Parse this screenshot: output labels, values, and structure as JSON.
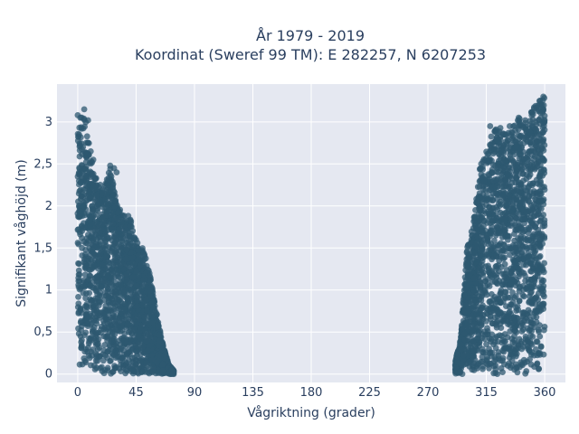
{
  "chart_data": {
    "type": "scatter",
    "title_line1": "År 1979 - 2019",
    "title_line2": "Koordinat (Sweref 99 TM): E 282257, N 6207253",
    "xlabel": "Vågriktning (grader)",
    "ylabel": "Signifikant våghöjd (m)",
    "xlim": [
      -16,
      376
    ],
    "ylim": [
      -0.1,
      3.45
    ],
    "x_ticks": [
      0,
      45,
      90,
      135,
      180,
      225,
      270,
      315,
      360
    ],
    "x_tick_labels": [
      "0",
      "45",
      "90",
      "135",
      "180",
      "225",
      "270",
      "315",
      "360"
    ],
    "y_ticks": [
      0,
      0.5,
      1,
      1.5,
      2,
      2.5,
      3
    ],
    "y_tick_labels": [
      "0",
      "0,5",
      "1",
      "1,5",
      "2",
      "2,5",
      "3"
    ],
    "grid": true,
    "legend": "none",
    "colors": {
      "marker": "#2e5870",
      "plot_bg": "#e5e8f1",
      "text": "#2a3f5f",
      "grid": "#ffffff"
    },
    "series": [
      {
        "clusters": [
          {
            "x_range": [
              0,
              74
            ],
            "envelope": [
              [
                0,
                2.95
              ],
              [
                5,
                3.15
              ],
              [
                10,
                2.6
              ],
              [
                15,
                2.3
              ],
              [
                20,
                2.2
              ],
              [
                25,
                2.45
              ],
              [
                30,
                2.05
              ],
              [
                35,
                1.9
              ],
              [
                40,
                1.9
              ],
              [
                45,
                1.6
              ],
              [
                50,
                1.5
              ],
              [
                55,
                1.25
              ],
              [
                60,
                0.8
              ],
              [
                65,
                0.4
              ],
              [
                70,
                0.12
              ],
              [
                74,
                0.04
              ]
            ]
          },
          {
            "x_range": [
              291,
              360
            ],
            "envelope": [
              [
                291,
                0.15
              ],
              [
                295,
                0.4
              ],
              [
                300,
                1.5
              ],
              [
                305,
                1.8
              ],
              [
                310,
                2.45
              ],
              [
                315,
                2.7
              ],
              [
                320,
                2.9
              ],
              [
                325,
                2.95
              ],
              [
                330,
                2.85
              ],
              [
                335,
                2.95
              ],
              [
                340,
                3.05
              ],
              [
                345,
                3.0
              ],
              [
                350,
                3.15
              ],
              [
                355,
                3.25
              ],
              [
                360,
                3.3
              ]
            ]
          }
        ],
        "outliers": [
          [
            0,
            3.08
          ],
          [
            2,
            3.05
          ],
          [
            5,
            3.15
          ],
          [
            8,
            3.02
          ],
          [
            3,
            2.92
          ],
          [
            1,
            2.85
          ],
          [
            4,
            2.7
          ],
          [
            10,
            2.65
          ],
          [
            12,
            2.55
          ],
          [
            25,
            2.48
          ],
          [
            28,
            2.45
          ],
          [
            30,
            2.4
          ],
          [
            318,
            2.95
          ],
          [
            322,
            2.9
          ],
          [
            333,
            2.95
          ],
          [
            340,
            3.05
          ],
          [
            345,
            3.02
          ],
          [
            350,
            3.08
          ],
          [
            353,
            3.0
          ],
          [
            356,
            3.25
          ],
          [
            358,
            3.2
          ],
          [
            359,
            3.3
          ],
          [
            357,
            3.05
          ],
          [
            328,
            2.85
          ]
        ]
      }
    ]
  }
}
